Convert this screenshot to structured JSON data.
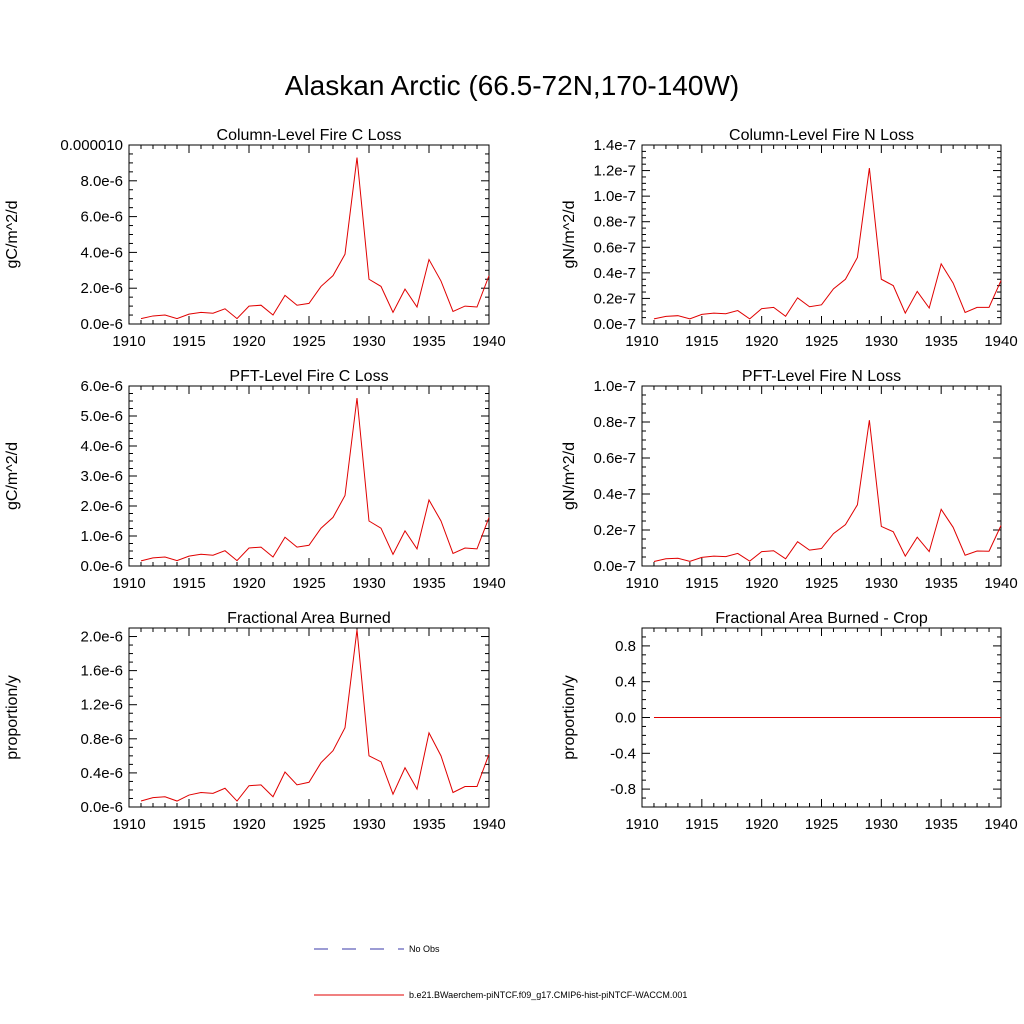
{
  "figure": {
    "title": "Alaskan Arctic (66.5-72N,170-140W)"
  },
  "colors": {
    "model_line": "#e00000",
    "obs_line": "#3a3aa8",
    "axis": "#000000"
  },
  "legend": {
    "obs_label": "No Obs",
    "model_label": "b.e21.BWaerchem-piNTCF.f09_g17.CMIP6-hist-piNTCF-WACCM.001"
  },
  "chart_data": [
    {
      "type": "line",
      "title": "Column-Level Fire C Loss",
      "ylabel": "gC/m^2/d",
      "xlim": [
        1910,
        1940
      ],
      "ylim": [
        0,
        1e-05
      ],
      "xticks": [
        1910,
        1915,
        1920,
        1925,
        1930,
        1935,
        1940
      ],
      "xtick_labels": [
        "1910",
        "1915",
        "1920",
        "1925",
        "1930",
        "1935",
        "1940"
      ],
      "yticks": [
        0,
        2e-06,
        4e-06,
        6e-06,
        8e-06,
        1e-05
      ],
      "ytick_labels": [
        "0.0e-6",
        "2.0e-6",
        "4.0e-6",
        "6.0e-6",
        "8.0e-6",
        "0.000010"
      ],
      "x": [
        1911,
        1912,
        1913,
        1914,
        1915,
        1916,
        1917,
        1918,
        1919,
        1920,
        1921,
        1922,
        1923,
        1924,
        1925,
        1926,
        1927,
        1928,
        1929,
        1930,
        1931,
        1932,
        1933,
        1934,
        1935,
        1936,
        1937,
        1938,
        1939,
        1940
      ],
      "values": [
        3e-07,
        4.5e-07,
        5e-07,
        3e-07,
        5.5e-07,
        6.5e-07,
        6e-07,
        8.5e-07,
        3e-07,
        1e-06,
        1.05e-06,
        5e-07,
        1.6e-06,
        1.05e-06,
        1.15e-06,
        2.1e-06,
        2.7e-06,
        3.9e-06,
        9.3e-06,
        2.5e-06,
        2.1e-06,
        6.5e-07,
        1.95e-06,
        9.5e-07,
        3.6e-06,
        2.4e-06,
        7e-07,
        1e-06,
        9.5e-07,
        2.7e-06
      ]
    },
    {
      "type": "line",
      "title": "Column-Level Fire N Loss",
      "ylabel": "gN/m^2/d",
      "xlim": [
        1910,
        1940
      ],
      "ylim": [
        0,
        1.4e-07
      ],
      "xticks": [
        1910,
        1915,
        1920,
        1925,
        1930,
        1935,
        1940
      ],
      "xtick_labels": [
        "1910",
        "1915",
        "1920",
        "1925",
        "1930",
        "1935",
        "1940"
      ],
      "yticks": [
        0,
        2e-08,
        4e-08,
        6e-08,
        8e-08,
        1e-07,
        1.2e-07,
        1.4e-07
      ],
      "ytick_labels": [
        "0.0e-7",
        "0.2e-7",
        "0.4e-7",
        "0.6e-7",
        "0.8e-7",
        "1.0e-7",
        "1.2e-7",
        "1.4e-7"
      ],
      "x": [
        1911,
        1912,
        1913,
        1914,
        1915,
        1916,
        1917,
        1918,
        1919,
        1920,
        1921,
        1922,
        1923,
        1924,
        1925,
        1926,
        1927,
        1928,
        1929,
        1930,
        1931,
        1932,
        1933,
        1934,
        1935,
        1936,
        1937,
        1938,
        1939,
        1940
      ],
      "values": [
        4e-09,
        6e-09,
        6.5e-09,
        4e-09,
        7.5e-09,
        8.5e-09,
        8e-09,
        1.05e-08,
        4e-09,
        1.2e-08,
        1.3e-08,
        6e-09,
        2.05e-08,
        1.35e-08,
        1.5e-08,
        2.75e-08,
        3.5e-08,
        5.2e-08,
        1.22e-07,
        3.5e-08,
        3e-08,
        8.5e-09,
        2.55e-08,
        1.25e-08,
        4.7e-08,
        3.2e-08,
        9e-09,
        1.3e-08,
        1.3e-08,
        3.4e-08
      ]
    },
    {
      "type": "line",
      "title": "PFT-Level Fire C Loss",
      "ylabel": "gC/m^2/d",
      "xlim": [
        1910,
        1940
      ],
      "ylim": [
        0,
        6e-06
      ],
      "xticks": [
        1910,
        1915,
        1920,
        1925,
        1930,
        1935,
        1940
      ],
      "xtick_labels": [
        "1910",
        "1915",
        "1920",
        "1925",
        "1930",
        "1935",
        "1940"
      ],
      "yticks": [
        0,
        1e-06,
        2e-06,
        3e-06,
        4e-06,
        5e-06,
        6e-06
      ],
      "ytick_labels": [
        "0.0e-6",
        "1.0e-6",
        "2.0e-6",
        "3.0e-6",
        "4.0e-6",
        "5.0e-6",
        "6.0e-6"
      ],
      "x": [
        1911,
        1912,
        1913,
        1914,
        1915,
        1916,
        1917,
        1918,
        1919,
        1920,
        1921,
        1922,
        1923,
        1924,
        1925,
        1926,
        1927,
        1928,
        1929,
        1930,
        1931,
        1932,
        1933,
        1934,
        1935,
        1936,
        1937,
        1938,
        1939,
        1940
      ],
      "values": [
        1.7e-07,
        2.7e-07,
        3e-07,
        1.8e-07,
        3.3e-07,
        3.9e-07,
        3.6e-07,
        5.1e-07,
        1.8e-07,
        6e-07,
        6.3e-07,
        3e-07,
        9.6e-07,
        6.3e-07,
        6.9e-07,
        1.26e-06,
        1.62e-06,
        2.35e-06,
        5.6e-06,
        1.5e-06,
        1.26e-06,
        3.9e-07,
        1.17e-06,
        5.7e-07,
        2.2e-06,
        1.5e-06,
        4.2e-07,
        6e-07,
        5.7e-07,
        1.62e-06
      ]
    },
    {
      "type": "line",
      "title": "PFT-Level Fire N Loss",
      "ylabel": "gN/m^2/d",
      "xlim": [
        1910,
        1940
      ],
      "ylim": [
        0,
        1e-07
      ],
      "xticks": [
        1910,
        1915,
        1920,
        1925,
        1930,
        1935,
        1940
      ],
      "xtick_labels": [
        "1910",
        "1915",
        "1920",
        "1925",
        "1930",
        "1935",
        "1940"
      ],
      "yticks": [
        0,
        2e-08,
        4e-08,
        6e-08,
        8e-08,
        1e-07
      ],
      "ytick_labels": [
        "0.0e-7",
        "0.2e-7",
        "0.4e-7",
        "0.6e-7",
        "0.8e-7",
        "1.0e-7"
      ],
      "x": [
        1911,
        1912,
        1913,
        1914,
        1915,
        1916,
        1917,
        1918,
        1919,
        1920,
        1921,
        1922,
        1923,
        1924,
        1925,
        1926,
        1927,
        1928,
        1929,
        1930,
        1931,
        1932,
        1933,
        1934,
        1935,
        1936,
        1937,
        1938,
        1939,
        1940
      ],
      "values": [
        2.5e-09,
        4e-09,
        4.3e-09,
        2.6e-09,
        4.8e-09,
        5.5e-09,
        5.2e-09,
        7e-09,
        2.7e-09,
        8e-09,
        8.5e-09,
        4e-09,
        1.35e-08,
        8.8e-09,
        9.7e-09,
        1.8e-08,
        2.3e-08,
        3.4e-08,
        8.1e-08,
        2.2e-08,
        1.9e-08,
        5.5e-09,
        1.6e-08,
        8e-09,
        3.15e-08,
        2.15e-08,
        6e-09,
        8.3e-09,
        8.2e-09,
        2.25e-08
      ]
    },
    {
      "type": "line",
      "title": "Fractional Area Burned",
      "ylabel": "proportion/y",
      "xlim": [
        1910,
        1940
      ],
      "ylim": [
        0,
        2.1e-06
      ],
      "xticks": [
        1910,
        1915,
        1920,
        1925,
        1930,
        1935,
        1940
      ],
      "xtick_labels": [
        "1910",
        "1915",
        "1920",
        "1925",
        "1930",
        "1935",
        "1940"
      ],
      "yticks": [
        0,
        4e-07,
        8e-07,
        1.2e-06,
        1.6e-06,
        2e-06
      ],
      "ytick_labels": [
        "0.0e-6",
        "0.4e-6",
        "0.8e-6",
        "1.2e-6",
        "1.6e-6",
        "2.0e-6"
      ],
      "x": [
        1911,
        1912,
        1913,
        1914,
        1915,
        1916,
        1917,
        1918,
        1919,
        1920,
        1921,
        1922,
        1923,
        1924,
        1925,
        1926,
        1927,
        1928,
        1929,
        1930,
        1931,
        1932,
        1933,
        1934,
        1935,
        1936,
        1937,
        1938,
        1939,
        1940
      ],
      "values": [
        7e-08,
        1.1e-07,
        1.2e-07,
        7e-08,
        1.4e-07,
        1.7e-07,
        1.6e-07,
        2.2e-07,
        7e-08,
        2.5e-07,
        2.6e-07,
        1.2e-07,
        4.1e-07,
        2.6e-07,
        2.9e-07,
        5.2e-07,
        6.6e-07,
        9.3e-07,
        2.08e-06,
        6e-07,
        5.3e-07,
        1.5e-07,
        4.6e-07,
        2.1e-07,
        8.7e-07,
        6e-07,
        1.7e-07,
        2.4e-07,
        2.4e-07,
        6.2e-07
      ]
    },
    {
      "type": "line",
      "title": "Fractional Area Burned - Crop",
      "ylabel": "proportion/y",
      "xlim": [
        1910,
        1940
      ],
      "ylim": [
        -1.0,
        1.0
      ],
      "xticks": [
        1910,
        1915,
        1920,
        1925,
        1930,
        1935,
        1940
      ],
      "xtick_labels": [
        "1910",
        "1915",
        "1920",
        "1925",
        "1930",
        "1935",
        "1940"
      ],
      "yticks": [
        -0.8,
        -0.4,
        0,
        0.4,
        0.8
      ],
      "ytick_labels": [
        "-0.8",
        "-0.4",
        "0.0",
        "0.4",
        "0.8"
      ],
      "x": [
        1911,
        1940
      ],
      "values": [
        0,
        0
      ]
    }
  ]
}
